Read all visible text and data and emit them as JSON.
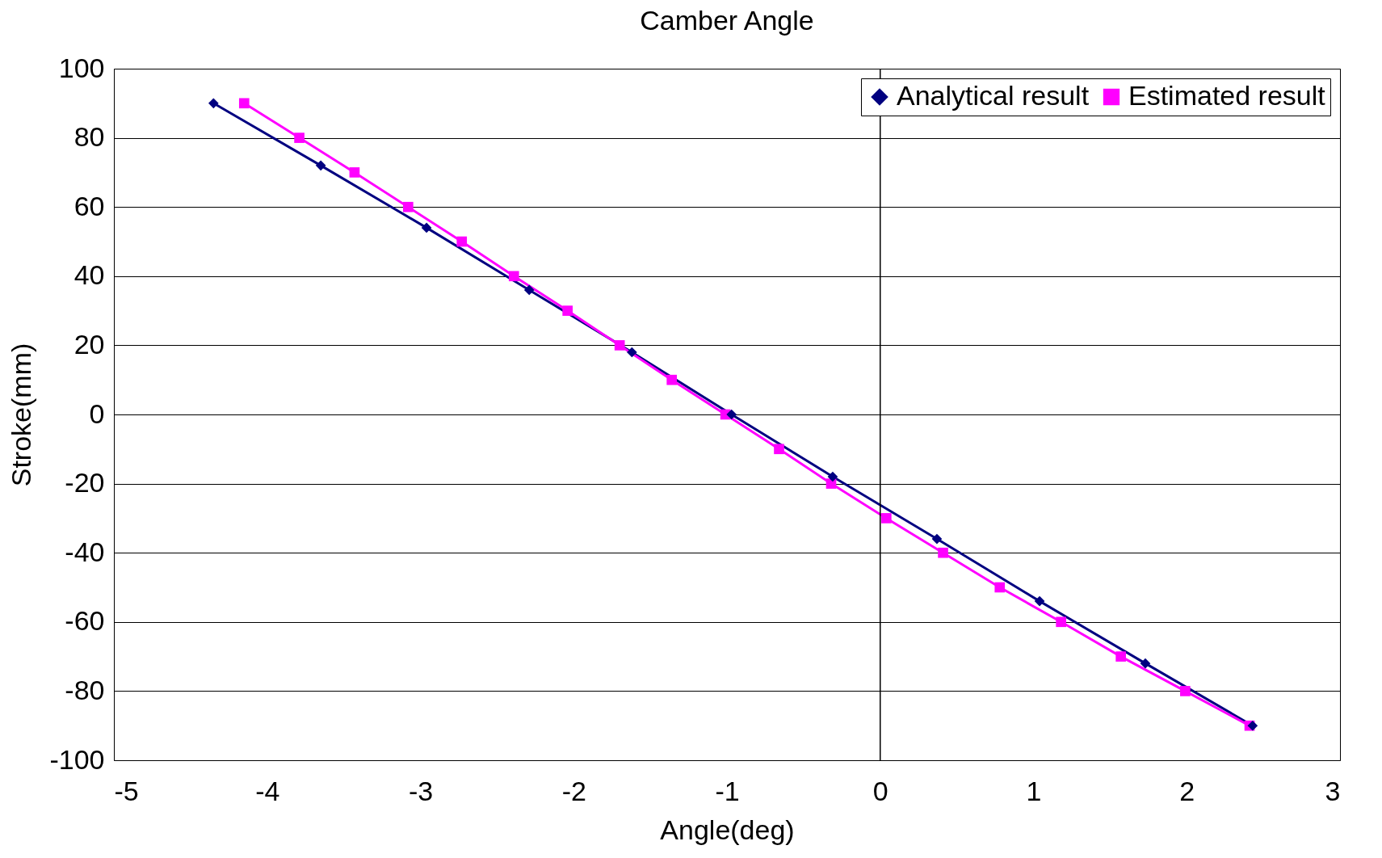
{
  "chart_data": {
    "type": "line",
    "title": "Camber Angle",
    "xlabel": "Angle(deg)",
    "ylabel": "Stroke(mm)",
    "xlim": [
      -5,
      3
    ],
    "xticks": [
      -5,
      -4,
      -3,
      -2,
      -1,
      0,
      1,
      2,
      3
    ],
    "ylim": [
      -100,
      100
    ],
    "yticks": [
      -100,
      -80,
      -60,
      -40,
      -20,
      0,
      20,
      40,
      60,
      80,
      100
    ],
    "grid": "y",
    "legend": "top right",
    "line_style": "solid",
    "ref_lines": [
      {
        "axis": "x",
        "value": 0,
        "color": "#000000"
      }
    ],
    "series": [
      {
        "name": "Analytical result",
        "color": "#000080",
        "marker": "diamond",
        "x": [
          -4.35,
          -3.65,
          -2.96,
          -2.29,
          -1.62,
          -0.97,
          -0.31,
          0.37,
          1.04,
          1.73,
          2.43
        ],
        "values": [
          90,
          72,
          54,
          36,
          18,
          0,
          -18,
          -36,
          -54,
          -72,
          -90
        ]
      },
      {
        "name": "Estimated result",
        "color": "#ff00ff",
        "marker": "square",
        "x": [
          -4.15,
          -3.79,
          -3.43,
          -3.08,
          -2.73,
          -2.39,
          -2.04,
          -1.7,
          -1.36,
          -1.01,
          -0.66,
          -0.32,
          0.04,
          0.41,
          0.78,
          1.18,
          1.57,
          1.99,
          2.41
        ],
        "values": [
          90,
          80,
          70,
          60,
          50,
          40,
          30,
          20,
          10,
          0,
          -10,
          -20,
          -30,
          -40,
          -50,
          -60,
          -70,
          -80,
          -90
        ]
      }
    ]
  }
}
